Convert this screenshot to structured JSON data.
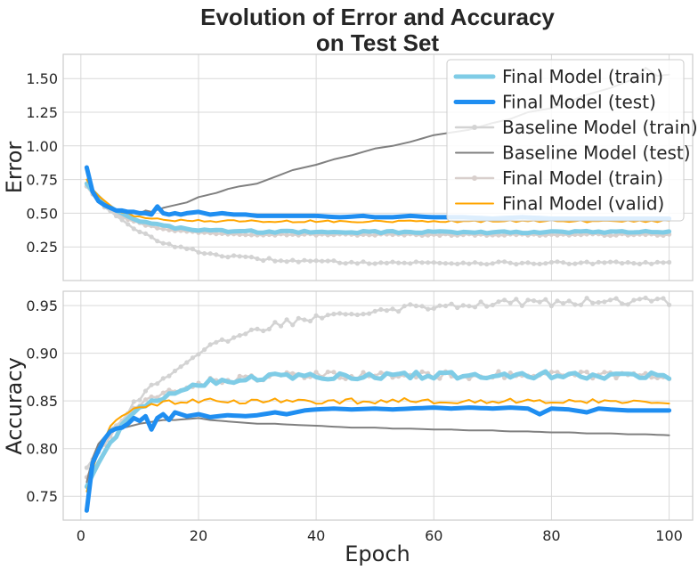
{
  "chart_data": {
    "type": "line",
    "title_line1": "Evolution of Error and Accuracy",
    "title_line2": "on Test Set",
    "xlabel": "Epoch",
    "x_ticks": [
      0,
      20,
      40,
      60,
      80,
      100
    ],
    "xlim": [
      -3,
      104
    ],
    "legend_position": "top-right",
    "panels": [
      {
        "id": "error",
        "ylabel": "Error",
        "ylim": [
          0.0,
          1.68
        ],
        "y_ticks": [
          0.25,
          0.5,
          0.75,
          1.0,
          1.25,
          1.5
        ],
        "y_tick_labels": [
          "0.25",
          "0.50",
          "0.75",
          "1.00",
          "1.25",
          "1.50"
        ],
        "series": [
          {
            "key": "final_train_light",
            "shape": {
              "start": 0.7,
              "end": 0.34,
              "rate": 0.16,
              "noise": 0.006
            }
          },
          {
            "key": "baseline_train",
            "shape": {
              "start": 0.7,
              "end": 0.13,
              "rate": 0.1,
              "noise": 0.01
            }
          },
          {
            "key": "final_train",
            "shape": {
              "start": 0.72,
              "end": 0.36,
              "rate": 0.16,
              "noise": 0.008
            }
          },
          {
            "key": "final_valid",
            "shape": {
              "start": 0.75,
              "end": 0.44,
              "rate": 0.25,
              "noise": 0.008
            }
          },
          {
            "key": "baseline_test",
            "points": [
              [
                1,
                0.8
              ],
              [
                2,
                0.64
              ],
              [
                3,
                0.58
              ],
              [
                4,
                0.55
              ],
              [
                5,
                0.53
              ],
              [
                6,
                0.52
              ],
              [
                7,
                0.51
              ],
              [
                8,
                0.51
              ],
              [
                9,
                0.5
              ],
              [
                10,
                0.5
              ],
              [
                11,
                0.52
              ],
              [
                12,
                0.51
              ],
              [
                14,
                0.54
              ],
              [
                16,
                0.56
              ],
              [
                18,
                0.58
              ],
              [
                20,
                0.62
              ],
              [
                23,
                0.65
              ],
              [
                25,
                0.68
              ],
              [
                27,
                0.7
              ],
              [
                30,
                0.72
              ],
              [
                33,
                0.77
              ],
              [
                36,
                0.82
              ],
              [
                40,
                0.86
              ],
              [
                43,
                0.9
              ],
              [
                46,
                0.93
              ],
              [
                50,
                0.98
              ],
              [
                53,
                1.0
              ],
              [
                56,
                1.03
              ],
              [
                60,
                1.08
              ],
              [
                63,
                1.1
              ],
              [
                66,
                1.12
              ],
              [
                70,
                1.17
              ],
              [
                73,
                1.2
              ],
              [
                76,
                1.25
              ],
              [
                80,
                1.28
              ],
              [
                83,
                1.33
              ],
              [
                86,
                1.38
              ],
              [
                90,
                1.43
              ],
              [
                93,
                1.48
              ],
              [
                95,
                1.52
              ],
              [
                96,
                1.58
              ],
              [
                98,
                1.52
              ],
              [
                100,
                1.53
              ]
            ]
          },
          {
            "key": "final_test",
            "points": [
              [
                1,
                0.84
              ],
              [
                2,
                0.66
              ],
              [
                3,
                0.59
              ],
              [
                4,
                0.56
              ],
              [
                5,
                0.54
              ],
              [
                6,
                0.52
              ],
              [
                7,
                0.52
              ],
              [
                8,
                0.51
              ],
              [
                9,
                0.51
              ],
              [
                10,
                0.5
              ],
              [
                11,
                0.5
              ],
              [
                12,
                0.49
              ],
              [
                13,
                0.55
              ],
              [
                14,
                0.5
              ],
              [
                15,
                0.49
              ],
              [
                16,
                0.5
              ],
              [
                17,
                0.49
              ],
              [
                18,
                0.5
              ],
              [
                20,
                0.51
              ],
              [
                22,
                0.49
              ],
              [
                24,
                0.5
              ],
              [
                26,
                0.49
              ],
              [
                28,
                0.49
              ],
              [
                30,
                0.48
              ],
              [
                33,
                0.48
              ],
              [
                36,
                0.48
              ],
              [
                40,
                0.48
              ],
              [
                44,
                0.47
              ],
              [
                48,
                0.48
              ],
              [
                50,
                0.47
              ],
              [
                53,
                0.47
              ],
              [
                56,
                0.48
              ],
              [
                60,
                0.47
              ],
              [
                65,
                0.47
              ],
              [
                70,
                0.46
              ],
              [
                75,
                0.47
              ],
              [
                80,
                0.46
              ],
              [
                85,
                0.46
              ],
              [
                90,
                0.46
              ],
              [
                95,
                0.46
              ],
              [
                100,
                0.46
              ]
            ]
          }
        ]
      },
      {
        "id": "accuracy",
        "ylabel": "Accuracy",
        "ylim": [
          0.725,
          0.965
        ],
        "y_ticks": [
          0.75,
          0.8,
          0.85,
          0.9,
          0.95
        ],
        "y_tick_labels": [
          "0.75",
          "0.80",
          "0.85",
          "0.90",
          "0.95"
        ],
        "series": [
          {
            "key": "final_train_light",
            "shape": {
              "start": 0.77,
              "end": 0.877,
              "rate": 0.13,
              "noise": 0.004
            }
          },
          {
            "key": "baseline_train",
            "shape": {
              "start": 0.78,
              "end": 0.955,
              "rate": 0.06,
              "noise": 0.004
            }
          },
          {
            "key": "final_train",
            "shape": {
              "start": 0.76,
              "end": 0.877,
              "rate": 0.13,
              "noise": 0.004
            }
          },
          {
            "key": "final_valid",
            "shape": {
              "start": 0.755,
              "end": 0.85,
              "rate": 0.3,
              "noise": 0.003
            }
          },
          {
            "key": "baseline_test",
            "points": [
              [
                1,
                0.765
              ],
              [
                2,
                0.79
              ],
              [
                3,
                0.805
              ],
              [
                4,
                0.812
              ],
              [
                5,
                0.818
              ],
              [
                6,
                0.82
              ],
              [
                8,
                0.823
              ],
              [
                10,
                0.826
              ],
              [
                12,
                0.828
              ],
              [
                14,
                0.83
              ],
              [
                16,
                0.83
              ],
              [
                18,
                0.831
              ],
              [
                20,
                0.832
              ],
              [
                22,
                0.83
              ],
              [
                24,
                0.829
              ],
              [
                26,
                0.828
              ],
              [
                28,
                0.827
              ],
              [
                30,
                0.826
              ],
              [
                33,
                0.826
              ],
              [
                36,
                0.825
              ],
              [
                40,
                0.824
              ],
              [
                43,
                0.823
              ],
              [
                46,
                0.822
              ],
              [
                50,
                0.822
              ],
              [
                53,
                0.821
              ],
              [
                56,
                0.821
              ],
              [
                60,
                0.82
              ],
              [
                63,
                0.82
              ],
              [
                66,
                0.819
              ],
              [
                70,
                0.819
              ],
              [
                73,
                0.818
              ],
              [
                76,
                0.818
              ],
              [
                80,
                0.817
              ],
              [
                83,
                0.817
              ],
              [
                86,
                0.816
              ],
              [
                90,
                0.816
              ],
              [
                93,
                0.815
              ],
              [
                96,
                0.815
              ],
              [
                100,
                0.814
              ]
            ]
          },
          {
            "key": "final_test",
            "points": [
              [
                1,
                0.735
              ],
              [
                2,
                0.785
              ],
              [
                3,
                0.798
              ],
              [
                4,
                0.81
              ],
              [
                5,
                0.818
              ],
              [
                6,
                0.821
              ],
              [
                7,
                0.822
              ],
              [
                8,
                0.826
              ],
              [
                9,
                0.832
              ],
              [
                10,
                0.829
              ],
              [
                11,
                0.834
              ],
              [
                12,
                0.82
              ],
              [
                13,
                0.832
              ],
              [
                14,
                0.836
              ],
              [
                15,
                0.83
              ],
              [
                16,
                0.838
              ],
              [
                18,
                0.834
              ],
              [
                20,
                0.836
              ],
              [
                22,
                0.833
              ],
              [
                25,
                0.835
              ],
              [
                28,
                0.834
              ],
              [
                30,
                0.835
              ],
              [
                33,
                0.838
              ],
              [
                35,
                0.836
              ],
              [
                38,
                0.84
              ],
              [
                40,
                0.841
              ],
              [
                43,
                0.842
              ],
              [
                46,
                0.841
              ],
              [
                50,
                0.842
              ],
              [
                53,
                0.841
              ],
              [
                56,
                0.842
              ],
              [
                60,
                0.843
              ],
              [
                63,
                0.842
              ],
              [
                66,
                0.843
              ],
              [
                70,
                0.842
              ],
              [
                73,
                0.843
              ],
              [
                76,
                0.842
              ],
              [
                78,
                0.836
              ],
              [
                80,
                0.842
              ],
              [
                83,
                0.841
              ],
              [
                86,
                0.838
              ],
              [
                88,
                0.842
              ],
              [
                90,
                0.841
              ],
              [
                93,
                0.84
              ],
              [
                96,
                0.84
              ],
              [
                100,
                0.84
              ]
            ]
          }
        ]
      }
    ],
    "legend": [
      {
        "key": "final_train",
        "label": "Final Model (train)"
      },
      {
        "key": "final_test",
        "label": "Final Model (test)"
      },
      {
        "key": "baseline_train",
        "label": "Baseline Model (train)"
      },
      {
        "key": "baseline_test",
        "label": "Baseline Model (test)"
      },
      {
        "key": "final_train_light",
        "label": "Final Model (train)"
      },
      {
        "key": "final_valid",
        "label": "Final Model (valid)"
      }
    ],
    "styles": {
      "final_train": {
        "color": "#7fcce6",
        "width": 5,
        "markers": false
      },
      "final_test": {
        "color": "#1f8ef1",
        "width": 5,
        "markers": false
      },
      "baseline_train": {
        "color": "#d3d3d3",
        "width": 2.5,
        "markers": true
      },
      "baseline_test": {
        "color": "#808080",
        "width": 2,
        "markers": false
      },
      "final_train_light": {
        "color": "#d8cfcc",
        "width": 2.5,
        "markers": true
      },
      "final_valid": {
        "color": "#ffa500",
        "width": 2,
        "markers": false
      }
    }
  }
}
